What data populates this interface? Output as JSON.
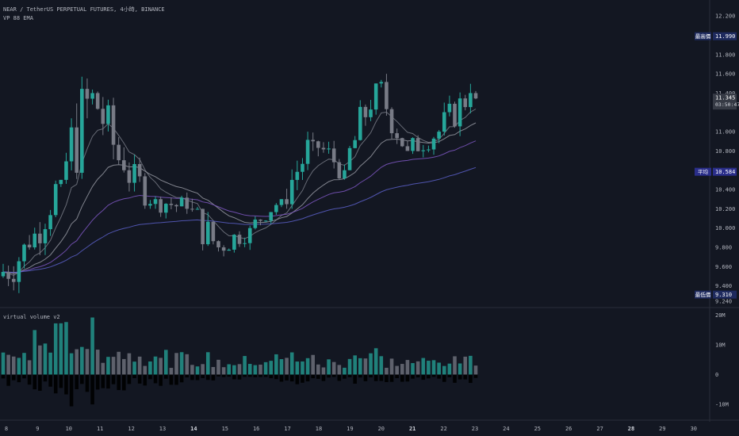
{
  "header": {
    "symbol_line": "NEAR / TetherUS PERPETUAL FUTURES, 4小時, BINANCE",
    "indicator_line": "VP 88 EMA",
    "volume_pane_title": "virtual volume v2"
  },
  "price_axis": {
    "ticks": [
      "12.200",
      "11.800",
      "11.600",
      "11.400",
      "11.000",
      "10.800",
      "10.400",
      "10.200",
      "10.000",
      "9.800",
      "9.600",
      "9.400",
      "9.240"
    ],
    "tick_values": [
      12.2,
      11.8,
      11.6,
      11.4,
      11.0,
      10.8,
      10.4,
      10.2,
      10.0,
      9.8,
      9.6,
      9.4,
      9.24
    ],
    "range": [
      9.2,
      12.3
    ]
  },
  "price_labels": {
    "high": {
      "label": "最高價",
      "value": "11.990",
      "price": 11.99
    },
    "avg": {
      "label": "平均",
      "value": "10.584",
      "price": 10.584
    },
    "low": {
      "label": "最低價",
      "value": "9.310",
      "price": 9.31
    },
    "last": {
      "value": "11.345",
      "countdown": "03:50:47",
      "price": 11.345
    }
  },
  "volume_axis": {
    "ticks": [
      "20M",
      "10M",
      "0",
      "-10M"
    ],
    "tick_values": [
      20,
      10,
      0,
      -10
    ],
    "range": [
      -14,
      22
    ]
  },
  "time_axis": {
    "labels": [
      "8",
      "9",
      "10",
      "11",
      "12",
      "13",
      "14",
      "15",
      "16",
      "17",
      "18",
      "19",
      "20",
      "21",
      "22",
      "23",
      "24",
      "25",
      "26",
      "27",
      "28",
      "29",
      "30"
    ],
    "bold": [
      "14",
      "21",
      "28"
    ]
  },
  "colors": {
    "background": "#131722",
    "bull": "#26a69a",
    "bear": "#787b86",
    "avg_label": "#2a2e8a",
    "ema_purple": "#7e57c2",
    "text": "#b2b5be"
  },
  "chart_data": {
    "type": "candlestick",
    "x": [
      "8",
      "9",
      "10",
      "11",
      "12",
      "13",
      "14",
      "15",
      "16",
      "17",
      "18",
      "19",
      "20",
      "21",
      "22",
      "23"
    ],
    "open": [
      9.5,
      9.8,
      10.5,
      11.4,
      10.6,
      10.3,
      10.2,
      9.8,
      10.0,
      10.3,
      10.9,
      10.6,
      11.5,
      10.8,
      11.0,
      11.4
    ],
    "high": [
      10.3,
      10.5,
      11.99,
      11.7,
      10.9,
      10.6,
      10.5,
      10.2,
      10.3,
      11.0,
      11.1,
      11.5,
      11.6,
      11.2,
      11.5,
      11.5
    ],
    "low": [
      9.31,
      9.65,
      10.2,
      10.5,
      10.2,
      10.1,
      9.7,
      9.7,
      9.95,
      10.2,
      10.5,
      10.6,
      10.8,
      10.7,
      10.8,
      11.3
    ],
    "close": [
      9.8,
      10.5,
      11.4,
      10.6,
      10.3,
      10.2,
      9.8,
      10.0,
      10.3,
      10.9,
      10.6,
      11.5,
      10.8,
      11.0,
      11.4,
      11.345
    ],
    "volume_pos": [
      8,
      14,
      15,
      11,
      9,
      7,
      6,
      5,
      6,
      7,
      5,
      8,
      6,
      5,
      6,
      5
    ],
    "volume_neg": [
      -3,
      -6,
      -9,
      -6,
      -4,
      -3,
      -2,
      -2,
      -2,
      -3,
      -2,
      -3,
      -2,
      -2,
      -3,
      -1
    ]
  }
}
